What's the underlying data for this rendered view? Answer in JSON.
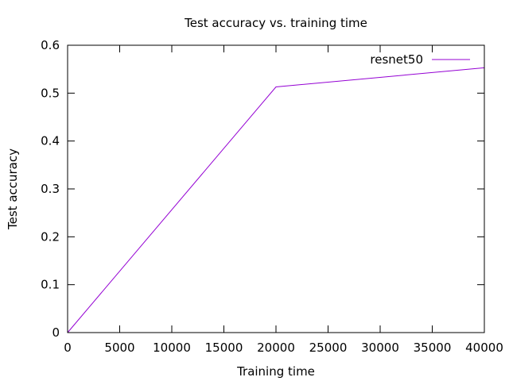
{
  "chart_data": {
    "type": "line",
    "title": "Test accuracy vs. training time",
    "xlabel": "Training time",
    "ylabel": "Test accuracy",
    "xlim": [
      0,
      40000
    ],
    "ylim": [
      0,
      0.6
    ],
    "xticks": [
      0,
      5000,
      10000,
      15000,
      20000,
      25000,
      30000,
      35000,
      40000
    ],
    "xtick_labels": [
      "0",
      "5000",
      "10000",
      "15000",
      "20000",
      "25000",
      "30000",
      "35000",
      "40000"
    ],
    "yticks": [
      0,
      0.1,
      0.2,
      0.3,
      0.4,
      0.5,
      0.6
    ],
    "ytick_labels": [
      "0",
      "0.1",
      "0.2",
      "0.3",
      "0.4",
      "0.5",
      "0.6"
    ],
    "grid": false,
    "legend_position": "top-right",
    "series": [
      {
        "name": "resnet50",
        "color": "#9400d3",
        "x": [
          0,
          20000,
          40000
        ],
        "y": [
          0,
          0.513,
          0.553
        ]
      }
    ]
  }
}
